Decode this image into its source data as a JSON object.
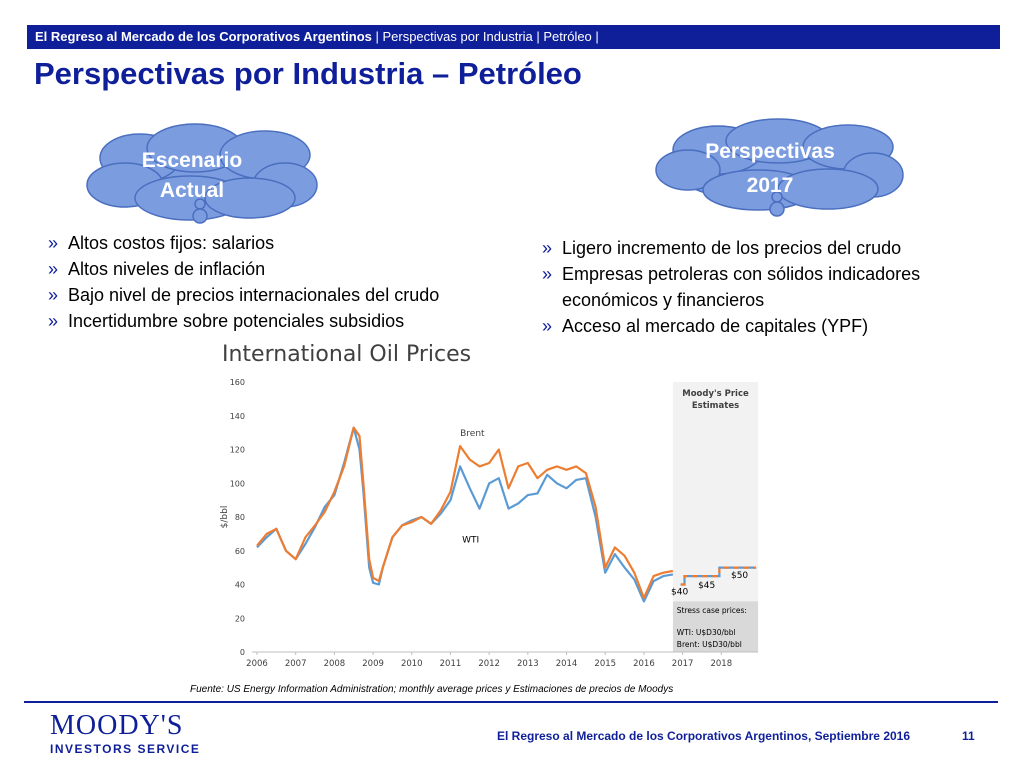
{
  "header": {
    "bar_bold": "El Regreso al Mercado de los Corporativos Argentinos",
    "bar_rest": " | Perspectivas por Industria | Petróleo |",
    "title": "Perspectivas por Industria – Petróleo"
  },
  "clouds": {
    "left_line1": "Escenario",
    "left_line2": "Actual",
    "right_line1": "Perspectivas",
    "right_line2": "2017"
  },
  "bullets_left": [
    "Altos costos fijos: salarios",
    "Altos niveles de inflación",
    "Bajo nivel de precios internacionales del crudo",
    "Incertidumbre sobre potenciales subsidios"
  ],
  "bullets_right": [
    "Ligero incremento de los precios del crudo",
    "Empresas petroleras con sólidos indicadores",
    "económicos y financieros",
    "Acceso al mercado de capitales (YPF)"
  ],
  "chart_data": {
    "type": "line",
    "title": "International Oil Prices",
    "ylabel": "$/bbl",
    "xlabel": "",
    "ylim": [
      0,
      160
    ],
    "yticks": [
      "0",
      "20",
      "40",
      "60",
      "80",
      "100",
      "120",
      "140",
      "160"
    ],
    "xticks": [
      "2006",
      "2007",
      "2008",
      "2009",
      "2010",
      "2011",
      "2012",
      "2013",
      "2014",
      "2015",
      "2016",
      "2017",
      "2018"
    ],
    "series": [
      {
        "name": "Brent",
        "color": "#ed7d31",
        "points": [
          [
            2006.0,
            63
          ],
          [
            2006.25,
            70
          ],
          [
            2006.5,
            73
          ],
          [
            2006.75,
            60
          ],
          [
            2007.0,
            55
          ],
          [
            2007.25,
            68
          ],
          [
            2007.5,
            75
          ],
          [
            2007.75,
            83
          ],
          [
            2008.0,
            95
          ],
          [
            2008.25,
            110
          ],
          [
            2008.5,
            133
          ],
          [
            2008.65,
            128
          ],
          [
            2008.75,
            100
          ],
          [
            2008.9,
            55
          ],
          [
            2009.0,
            44
          ],
          [
            2009.15,
            42
          ],
          [
            2009.25,
            50
          ],
          [
            2009.5,
            68
          ],
          [
            2009.75,
            75
          ],
          [
            2010.0,
            77
          ],
          [
            2010.25,
            80
          ],
          [
            2010.5,
            76
          ],
          [
            2010.75,
            84
          ],
          [
            2011.0,
            95
          ],
          [
            2011.25,
            122
          ],
          [
            2011.5,
            114
          ],
          [
            2011.75,
            110
          ],
          [
            2012.0,
            112
          ],
          [
            2012.25,
            120
          ],
          [
            2012.5,
            97
          ],
          [
            2012.75,
            110
          ],
          [
            2013.0,
            112
          ],
          [
            2013.25,
            103
          ],
          [
            2013.5,
            108
          ],
          [
            2013.75,
            110
          ],
          [
            2014.0,
            108
          ],
          [
            2014.25,
            110
          ],
          [
            2014.5,
            106
          ],
          [
            2014.75,
            86
          ],
          [
            2015.0,
            50
          ],
          [
            2015.25,
            62
          ],
          [
            2015.5,
            57
          ],
          [
            2015.75,
            47
          ],
          [
            2016.0,
            32
          ],
          [
            2016.25,
            45
          ],
          [
            2016.5,
            47
          ],
          [
            2016.75,
            48
          ]
        ]
      },
      {
        "name": "WTI",
        "color": "#5b9bd5",
        "points": [
          [
            2006.0,
            62
          ],
          [
            2006.25,
            68
          ],
          [
            2006.5,
            73
          ],
          [
            2006.75,
            60
          ],
          [
            2007.0,
            55
          ],
          [
            2007.25,
            64
          ],
          [
            2007.5,
            74
          ],
          [
            2007.75,
            86
          ],
          [
            2008.0,
            93
          ],
          [
            2008.25,
            112
          ],
          [
            2008.5,
            133
          ],
          [
            2008.65,
            120
          ],
          [
            2008.75,
            95
          ],
          [
            2008.9,
            50
          ],
          [
            2009.0,
            41
          ],
          [
            2009.15,
            40
          ],
          [
            2009.25,
            50
          ],
          [
            2009.5,
            68
          ],
          [
            2009.75,
            75
          ],
          [
            2010.0,
            78
          ],
          [
            2010.25,
            80
          ],
          [
            2010.5,
            76
          ],
          [
            2010.75,
            82
          ],
          [
            2011.0,
            90
          ],
          [
            2011.25,
            110
          ],
          [
            2011.5,
            97
          ],
          [
            2011.75,
            85
          ],
          [
            2012.0,
            100
          ],
          [
            2012.25,
            103
          ],
          [
            2012.5,
            85
          ],
          [
            2012.75,
            88
          ],
          [
            2013.0,
            93
          ],
          [
            2013.25,
            94
          ],
          [
            2013.5,
            105
          ],
          [
            2013.75,
            100
          ],
          [
            2014.0,
            97
          ],
          [
            2014.25,
            102
          ],
          [
            2014.5,
            103
          ],
          [
            2014.75,
            80
          ],
          [
            2015.0,
            47
          ],
          [
            2015.25,
            58
          ],
          [
            2015.5,
            50
          ],
          [
            2015.75,
            43
          ],
          [
            2016.0,
            30
          ],
          [
            2016.25,
            42
          ],
          [
            2016.5,
            45
          ],
          [
            2016.75,
            46
          ]
        ]
      }
    ],
    "forecast": {
      "color": "#5b9bd5",
      "dash_color": "#ed7d31",
      "points": [
        [
          2016.95,
          40
        ],
        [
          2017.05,
          40
        ],
        [
          2017.05,
          45
        ],
        [
          2017.95,
          45
        ],
        [
          2017.95,
          50
        ],
        [
          2018.9,
          50
        ]
      ]
    },
    "annotations": {
      "brent": "Brent",
      "wti": "WTI",
      "moodys_line1": "Moody's Price",
      "moodys_line2": "Estimates",
      "p40": "$40",
      "p45": "$45",
      "p50": "$50",
      "stress_title": "Stress case prices:",
      "stress_wti": "WTI: U$D30/bbl",
      "stress_brent": "Brent: U$D30/bbl"
    },
    "grid": false
  },
  "source": "Fuente: US Energy Information Administration; monthly average prices y Estimaciones de precios de Moodys",
  "footer": {
    "text": "El Regreso al Mercado de los Corporativos Argentinos, Septiembre 2016",
    "page": "11"
  },
  "logo": {
    "main": "MOODY'S",
    "sub": "INVESTORS SERVICE"
  }
}
